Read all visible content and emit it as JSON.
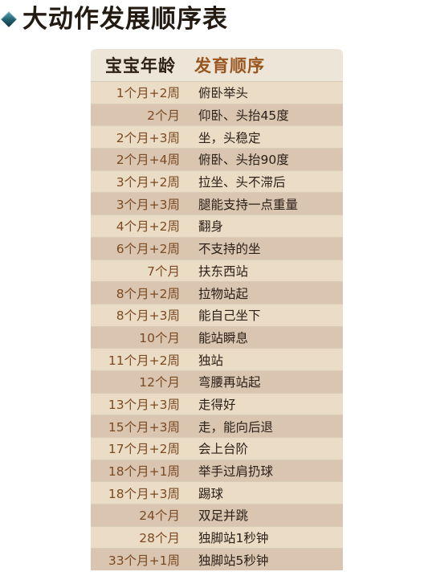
{
  "page": {
    "title": "大动作发展顺序表"
  },
  "table": {
    "headers": {
      "age": "宝宝年龄",
      "skill": "发育顺序"
    },
    "rows": [
      {
        "age": "1个月+2周",
        "skill": "俯卧举头"
      },
      {
        "age": "2个月",
        "skill": "仰卧、头抬45度"
      },
      {
        "age": "2个月+3周",
        "skill": "坐，头稳定"
      },
      {
        "age": "2个月+4周",
        "skill": "俯卧、头抬90度"
      },
      {
        "age": "3个月+2周",
        "skill": "拉坐、头不滞后"
      },
      {
        "age": "3个月+3周",
        "skill": "腿能支持一点重量"
      },
      {
        "age": "4个月+2周",
        "skill": "翻身"
      },
      {
        "age": "6个月+2周",
        "skill": "不支持的坐"
      },
      {
        "age": "7个月",
        "skill": "扶东西站"
      },
      {
        "age": "8个月+2周",
        "skill": "拉物站起"
      },
      {
        "age": "8个月+3周",
        "skill": "能自己坐下"
      },
      {
        "age": "10个月",
        "skill": "能站瞬息"
      },
      {
        "age": "11个月+2周",
        "skill": "独站"
      },
      {
        "age": "12个月",
        "skill": "弯腰再站起"
      },
      {
        "age": "13个月+3周",
        "skill": "走得好"
      },
      {
        "age": "15个月+3周",
        "skill": "走，能向后退"
      },
      {
        "age": "17个月+2周",
        "skill": "会上台阶"
      },
      {
        "age": "18个月+1周",
        "skill": "举手过肩扔球"
      },
      {
        "age": "18个月+3周",
        "skill": "踢球"
      },
      {
        "age": "24个月",
        "skill": "双足并跳"
      },
      {
        "age": "28个月",
        "skill": "独脚站1秒钟"
      },
      {
        "age": "33个月+1周",
        "skill": "独脚站5秒钟"
      }
    ]
  },
  "colors": {
    "title": "#231a12",
    "bullet": "#1f5f6e",
    "header_age": "#2e2016",
    "header_skill": "#9a5620",
    "age_text": "#7a4a22",
    "skill_text": "#2b2018",
    "row_light": "#ebdcc5",
    "row_dark": "#d9c5b0"
  }
}
